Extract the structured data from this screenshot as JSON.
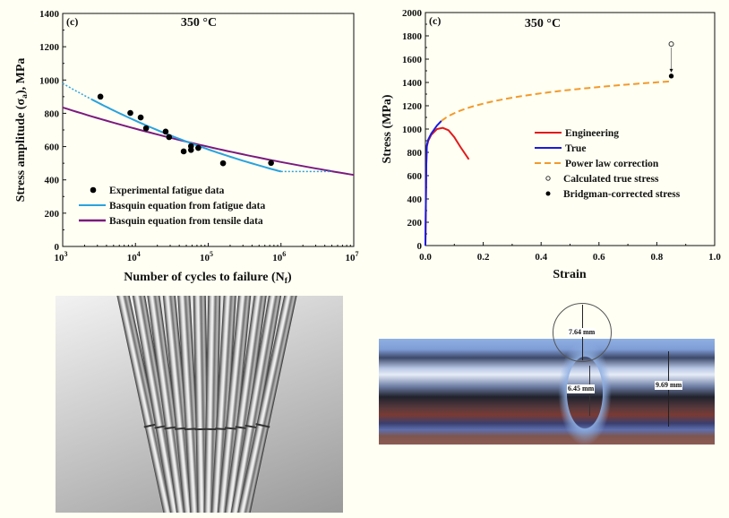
{
  "chart_data": [
    {
      "type": "scatter+line",
      "panel_label": "(c)",
      "title": "350 °C",
      "xlabel": "Number of cycles to failure (Nf)",
      "ylabel": "Stress amplitude (σa), MPa",
      "x_scale": "log",
      "xlim": [
        1000,
        10000000
      ],
      "ylim": [
        0,
        1400
      ],
      "x_ticks": [
        1000,
        10000,
        100000,
        1000000,
        10000000
      ],
      "x_tick_labels": [
        [
          "10",
          "3"
        ],
        [
          "10",
          "4"
        ],
        [
          "10",
          "5"
        ],
        [
          "10",
          "6"
        ],
        [
          "10",
          "7"
        ]
      ],
      "y_ticks": [
        0,
        200,
        400,
        600,
        800,
        1000,
        1200,
        1400
      ],
      "y_tick_labels": [
        "0",
        "200",
        "400",
        "600",
        "800",
        "1000",
        "1200",
        "1400"
      ],
      "grid": false,
      "legend_placement": "bottom-left",
      "series": [
        {
          "name": "Experimental fatigue data",
          "kind": "scatter",
          "color": "#000000",
          "points": [
            [
              3300,
              900
            ],
            [
              8500,
              802
            ],
            [
              11800,
              775
            ],
            [
              14000,
              710
            ],
            [
              26000,
              690
            ],
            [
              29000,
              657
            ],
            [
              46000,
              571
            ],
            [
              58000,
              603
            ],
            [
              58000,
              580
            ],
            [
              73000,
              592
            ],
            [
              160000,
              500
            ],
            [
              730000,
              502
            ]
          ]
        },
        {
          "name": "Basquin equation from fatigue data",
          "kind": "power-law",
          "color": "#2aa2dd",
          "coef": 980,
          "exponent": -0.1127,
          "solid_range": [
            2500,
            1000000
          ],
          "extrapolated_dotted": [
            [
              1000,
              2500
            ],
            [
              1000000,
              5000000
            ]
          ],
          "plateau_after": 450
        },
        {
          "name": "Basquin equation from tensile data",
          "kind": "power-law",
          "color": "#7b1a7e",
          "coef": 835,
          "exponent": -0.0721,
          "solid_range": [
            1000,
            10000000
          ]
        }
      ]
    },
    {
      "type": "line",
      "panel_label": "(c)",
      "title": "350 °C",
      "xlabel": "Strain",
      "ylabel": "Stress (MPa)",
      "xlim": [
        0,
        1.0
      ],
      "ylim": [
        0,
        2000
      ],
      "x_ticks": [
        0,
        0.2,
        0.4,
        0.6,
        0.8,
        1.0
      ],
      "x_tick_labels": [
        "0.0",
        "0.2",
        "0.4",
        "0.6",
        "0.8",
        "1.0"
      ],
      "y_ticks": [
        0,
        200,
        400,
        600,
        800,
        1000,
        1200,
        1400,
        1600,
        1800,
        2000
      ],
      "y_tick_labels": [
        "0",
        "200",
        "400",
        "600",
        "800",
        "1000",
        "1200",
        "1400",
        "1600",
        "1800",
        "2000"
      ],
      "grid": false,
      "legend_placement": "center-right",
      "series": [
        {
          "name": "Engineering",
          "color": "#e01b1b",
          "style": "solid",
          "points": [
            [
              0,
              0
            ],
            [
              0.003,
              700
            ],
            [
              0.005,
              850
            ],
            [
              0.01,
              900
            ],
            [
              0.02,
              950
            ],
            [
              0.04,
              1000
            ],
            [
              0.06,
              1010
            ],
            [
              0.08,
              990
            ],
            [
              0.1,
              930
            ],
            [
              0.12,
              850
            ],
            [
              0.15,
              740
            ]
          ]
        },
        {
          "name": "True",
          "color": "#1a1adf",
          "style": "solid",
          "points": [
            [
              0,
              0
            ],
            [
              0.003,
              700
            ],
            [
              0.005,
              860
            ],
            [
              0.01,
              910
            ],
            [
              0.02,
              960
            ],
            [
              0.04,
              1030
            ],
            [
              0.055,
              1070
            ]
          ]
        },
        {
          "name": "Power law correction",
          "color": "#f39a2b",
          "style": "dashed",
          "coef": 1433,
          "exponent": 0.1008,
          "range": [
            0.055,
            0.85
          ]
        },
        {
          "name": "Calculated true stress",
          "marker": "open-circle",
          "color": "#000000",
          "points": [
            [
              0.85,
              1730
            ]
          ]
        },
        {
          "name": "Bridgman-corrected stress",
          "marker": "filled-circle",
          "color": "#000000",
          "points": [
            [
              0.85,
              1455
            ]
          ]
        }
      ]
    }
  ],
  "photos": {
    "specimens": {
      "description_icon": "fatigue-specimens-photo"
    },
    "necked_specimen": {
      "labels": {
        "radius": "7.64 mm",
        "neck_diameter": "6.45 mm",
        "diameter": "9.69 mm"
      }
    }
  }
}
